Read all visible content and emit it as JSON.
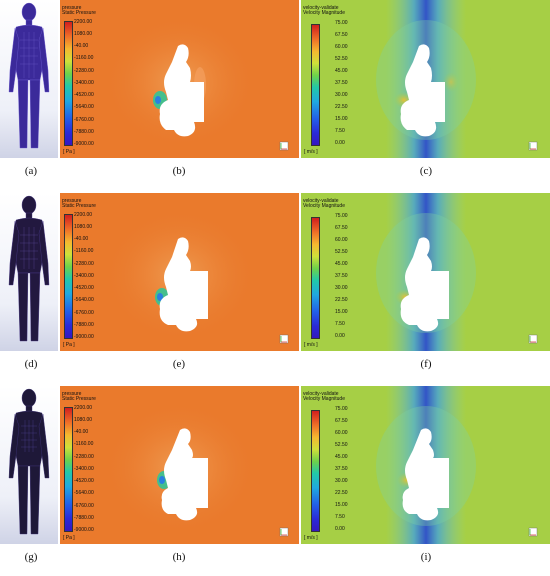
{
  "pressure_legend": {
    "line1": "pressure",
    "line2": "Static Pressure",
    "ticks": [
      "2200.00",
      "1080.00",
      "-40.00",
      "-1160.00",
      "-2280.00",
      "-3400.00",
      "-4520.00",
      "-5640.00",
      "-6760.00",
      "-7880.00",
      "-9000.00"
    ],
    "unit": "[ Pa ]"
  },
  "velocity_legend": {
    "line1": "velocity-validate",
    "line2": "Velocity Magnitude",
    "ticks": [
      "75.00",
      "67.50",
      "60.00",
      "52.50",
      "45.00",
      "37.50",
      "30.00",
      "22.50",
      "15.00",
      "7.50",
      "0.00"
    ],
    "unit": "[ m/s ]"
  },
  "rows": [
    {
      "captions": [
        "(a)",
        "(b)",
        "(c)"
      ]
    },
    {
      "captions": [
        "(d)",
        "(e)",
        "(f)"
      ]
    },
    {
      "captions": [
        "(g)",
        "(h)",
        "(i)"
      ]
    }
  ],
  "colors": {
    "pressure_bg": "#ea7a2c",
    "velocity_bg": "#a6cf45",
    "mannequin": "#2a1f6b"
  }
}
